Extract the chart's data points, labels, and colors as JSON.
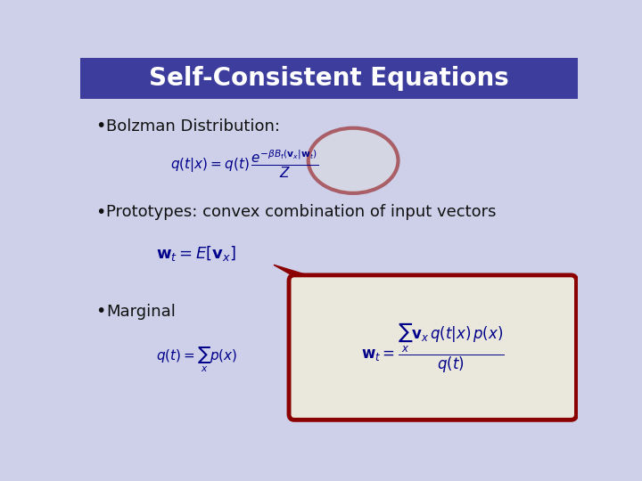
{
  "title": "Self-Consistent Equations",
  "title_bg_color": "#3d3d9e",
  "title_text_color": "#ffffff",
  "bg_color": "#cdd0e8",
  "bullet1": "Bolzman Distribution:",
  "bullet2": "Prototypes: convex combination of input vectors",
  "bullet3": "Marginal",
  "circle_color": "#8b0000",
  "box_color": "#8b0000",
  "box_fill": "#eae8dc",
  "eq_color": "#00008b",
  "text_color": "#111111",
  "title_fontsize": 20,
  "bullet_fontsize": 13,
  "eq_fontsize": 11
}
